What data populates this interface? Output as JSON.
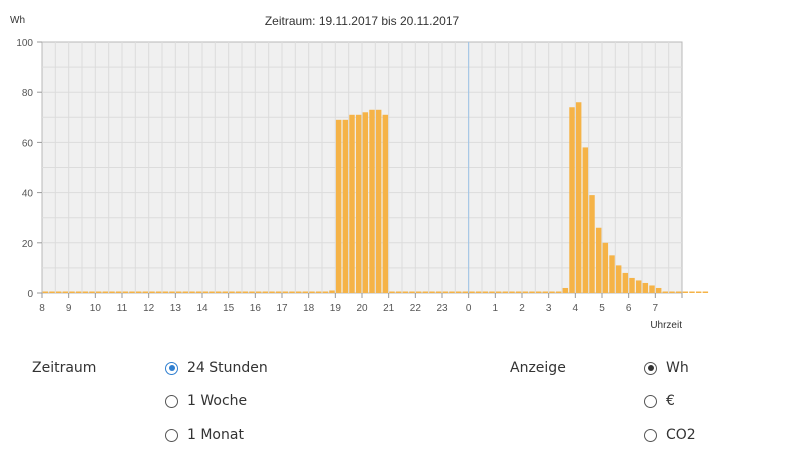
{
  "chart_data": {
    "type": "bar",
    "title": "Zeitraum: 19.11.2017 bis 20.11.2017",
    "ylabel": "Wh",
    "xlabel": "Uhrzeit",
    "ylim": [
      0,
      100
    ],
    "yticks": [
      "0",
      "20",
      "40",
      "60",
      "80",
      "100"
    ],
    "xticks": [
      "8",
      "9",
      "10",
      "11",
      "12",
      "13",
      "14",
      "15",
      "16",
      "17",
      "18",
      "19",
      "20",
      "21",
      "22",
      "23",
      "0",
      "1",
      "2",
      "3",
      "4",
      "5",
      "6",
      "7"
    ],
    "bar_color": "#f5b347",
    "bar_width_hours": 0.25,
    "x_start_hour_offset": 0,
    "x_total_hours": 24,
    "midnight_marker_color": "#9cc3e8",
    "grid": true,
    "values": [
      0,
      0,
      0,
      0,
      0,
      0,
      0,
      0,
      0,
      0,
      0,
      0,
      0,
      0,
      0,
      0,
      0,
      0,
      0,
      0,
      0,
      0,
      0,
      0,
      0,
      0,
      0,
      0,
      0,
      0,
      0,
      0,
      0,
      0,
      0,
      0,
      0,
      0,
      0,
      0,
      0,
      0,
      0,
      1,
      69,
      69,
      71,
      71,
      72,
      73,
      73,
      71,
      0,
      0,
      0,
      0,
      0,
      0,
      0,
      0,
      0,
      0,
      0,
      0,
      0,
      0,
      0,
      0,
      0,
      0,
      0,
      0,
      0,
      0,
      0,
      0,
      0,
      0,
      2,
      74,
      76,
      58,
      39,
      26,
      20,
      15,
      11,
      8,
      6,
      5,
      4,
      3,
      2,
      0,
      0,
      0,
      0,
      0,
      0,
      0
    ]
  },
  "controls": {
    "zeitraum_label": "Zeitraum",
    "zeitraum_options": [
      "24 Stunden",
      "1 Woche",
      "1 Monat"
    ],
    "zeitraum_selected": "24 Stunden",
    "anzeige_label": "Anzeige",
    "anzeige_options": [
      "Wh",
      "€",
      "CO2"
    ],
    "anzeige_selected": "Wh",
    "accent_color": "#2f7fd0"
  }
}
